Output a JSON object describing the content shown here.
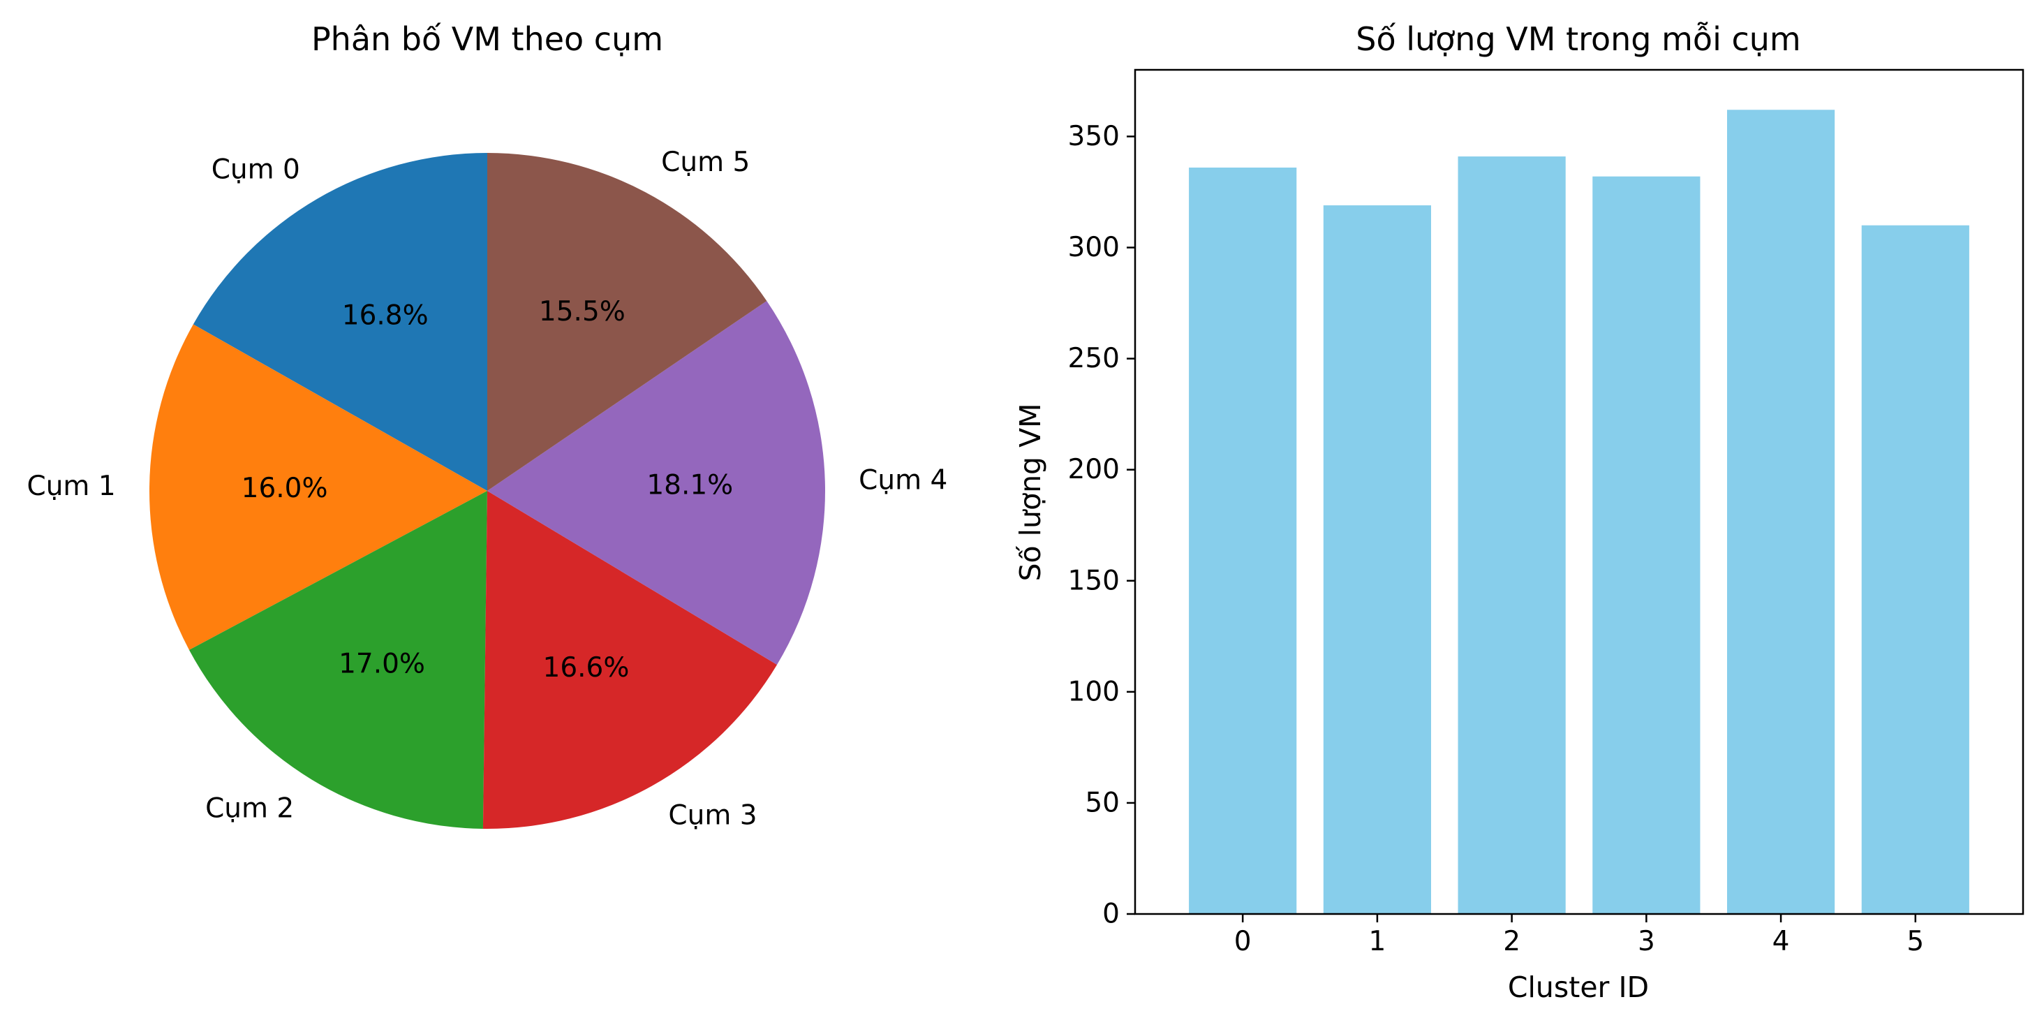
{
  "chart_data": [
    {
      "type": "pie",
      "title": "Phân bố VM theo cụm",
      "labels": [
        "Cụm 0",
        "Cụm 1",
        "Cụm 2",
        "Cụm 3",
        "Cụm 4",
        "Cụm 5"
      ],
      "values": [
        16.8,
        16.0,
        17.0,
        16.6,
        18.1,
        15.5
      ],
      "percent_labels": [
        "16.8%",
        "16.0%",
        "17.0%",
        "16.6%",
        "18.1%",
        "15.5%"
      ],
      "start_angle_deg": 90,
      "direction": "counterclockwise",
      "colors": [
        "#1f77b4",
        "#ff7f0e",
        "#2ca02c",
        "#d62728",
        "#9467bd",
        "#8c564b"
      ]
    },
    {
      "type": "bar",
      "title": "Số lượng VM trong mỗi cụm",
      "categories": [
        "0",
        "1",
        "2",
        "3",
        "4",
        "5"
      ],
      "values": [
        336,
        319,
        341,
        332,
        362,
        310
      ],
      "xlabel": "Cluster ID",
      "ylabel": "Số lượng VM",
      "ylim": [
        0,
        380
      ],
      "yticks": [
        0,
        50,
        100,
        150,
        200,
        250,
        300,
        350
      ],
      "color": "#87ceeb",
      "grid": false
    }
  ]
}
